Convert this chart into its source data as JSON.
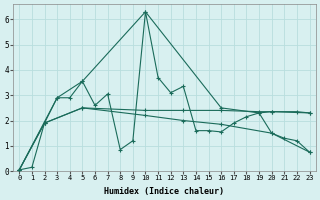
{
  "xlabel": "Humidex (Indice chaleur)",
  "bg_color": "#d8f0f0",
  "grid_color": "#b8dede",
  "line_color": "#1a6b5a",
  "xlim": [
    -0.5,
    23.5
  ],
  "ylim": [
    0,
    6.6
  ],
  "yticks": [
    0,
    1,
    2,
    3,
    4,
    5,
    6
  ],
  "xticks": [
    0,
    1,
    2,
    3,
    4,
    5,
    6,
    7,
    8,
    9,
    10,
    11,
    12,
    13,
    14,
    15,
    16,
    17,
    18,
    19,
    20,
    21,
    22,
    23
  ],
  "series": [
    {
      "x": [
        0,
        1,
        2,
        3,
        4,
        5,
        6,
        7,
        8,
        9,
        10,
        11,
        12,
        13,
        14,
        15,
        16,
        17,
        18,
        19,
        20,
        21,
        22,
        23
      ],
      "y": [
        0.05,
        0.15,
        1.9,
        2.9,
        2.9,
        3.55,
        2.6,
        3.05,
        0.85,
        1.2,
        6.3,
        3.7,
        3.1,
        3.35,
        1.6,
        1.6,
        1.55,
        1.9,
        2.15,
        2.3,
        1.5,
        1.3,
        1.2,
        0.75
      ]
    },
    {
      "x": [
        0,
        3,
        5,
        10,
        16,
        19,
        20,
        22,
        23
      ],
      "y": [
        0.05,
        2.9,
        3.55,
        6.3,
        2.5,
        2.3,
        2.35,
        2.35,
        2.3
      ]
    },
    {
      "x": [
        0,
        2,
        5,
        10,
        13,
        16,
        19,
        20,
        23
      ],
      "y": [
        0.05,
        1.9,
        2.5,
        2.4,
        2.4,
        2.4,
        2.35,
        2.35,
        2.3
      ]
    },
    {
      "x": [
        0,
        2,
        5,
        10,
        13,
        16,
        20,
        23
      ],
      "y": [
        0.05,
        1.9,
        2.5,
        2.2,
        2.0,
        1.85,
        1.5,
        0.75
      ]
    }
  ]
}
